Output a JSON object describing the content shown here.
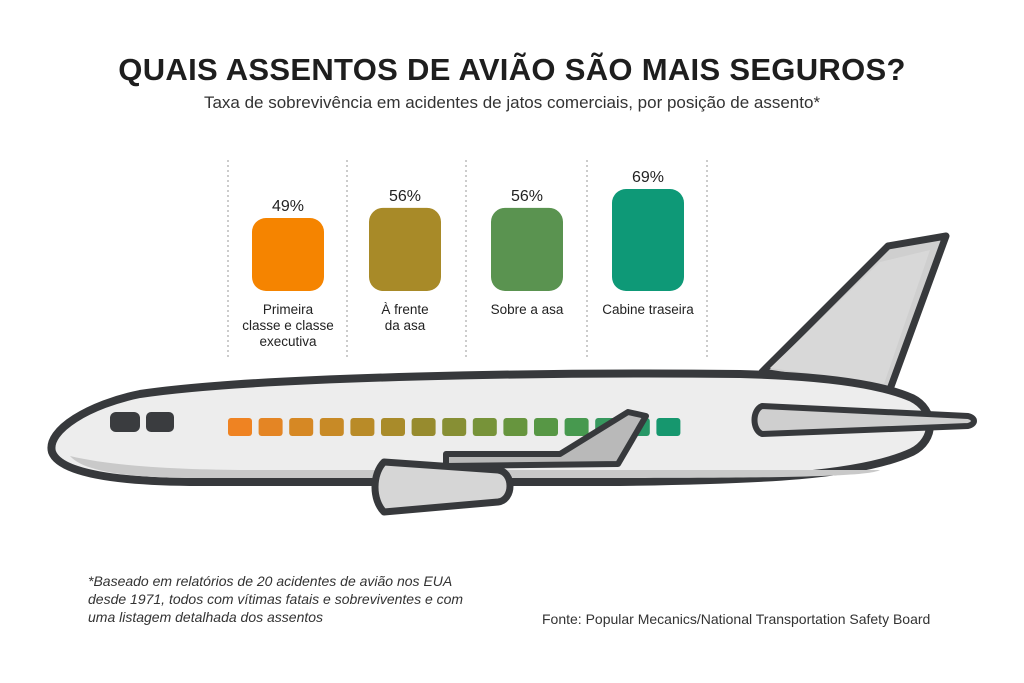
{
  "header": {
    "title": "QUAIS ASSENTOS DE AVIÃO SÃO MAIS SEGUROS?",
    "subtitle": "Taxa de sobrevivência em acidentes de jatos comerciais, por posição de assento*"
  },
  "chart_data": {
    "type": "bar",
    "unit": "%",
    "categories": [
      [
        "Primeira",
        "classe e classe",
        "executiva"
      ],
      [
        "À frente",
        "da asa"
      ],
      [
        "Sobre a asa"
      ],
      [
        "Cabine traseira"
      ]
    ],
    "values": [
      49,
      56,
      56,
      69
    ],
    "value_labels": [
      "49%",
      "56%",
      "56%",
      "69%"
    ],
    "colors": [
      "#f58400",
      "#a88a28",
      "#5a9350",
      "#0e9977"
    ],
    "grid": false,
    "legend": "none"
  },
  "illustration": {
    "subject": "airplane",
    "window_colors": [
      "#ef8322",
      "#e48524",
      "#d68824",
      "#c88a26",
      "#b98b28",
      "#a98b2a",
      "#978b2e",
      "#878f34",
      "#779339",
      "#67953e",
      "#579745",
      "#47994f",
      "#37985e",
      "#279766",
      "#16976e"
    ],
    "nose_window_color": "#3a3c3f"
  },
  "footnote": "*Baseado em relatórios de 20 acidentes de avião nos EUA desde 1971, todos com vítimas fatais e sobreviventes e com uma listagem detalhada dos assentos",
  "source": "Fonte: Popular Mecanics/National Transportation Safety Board"
}
